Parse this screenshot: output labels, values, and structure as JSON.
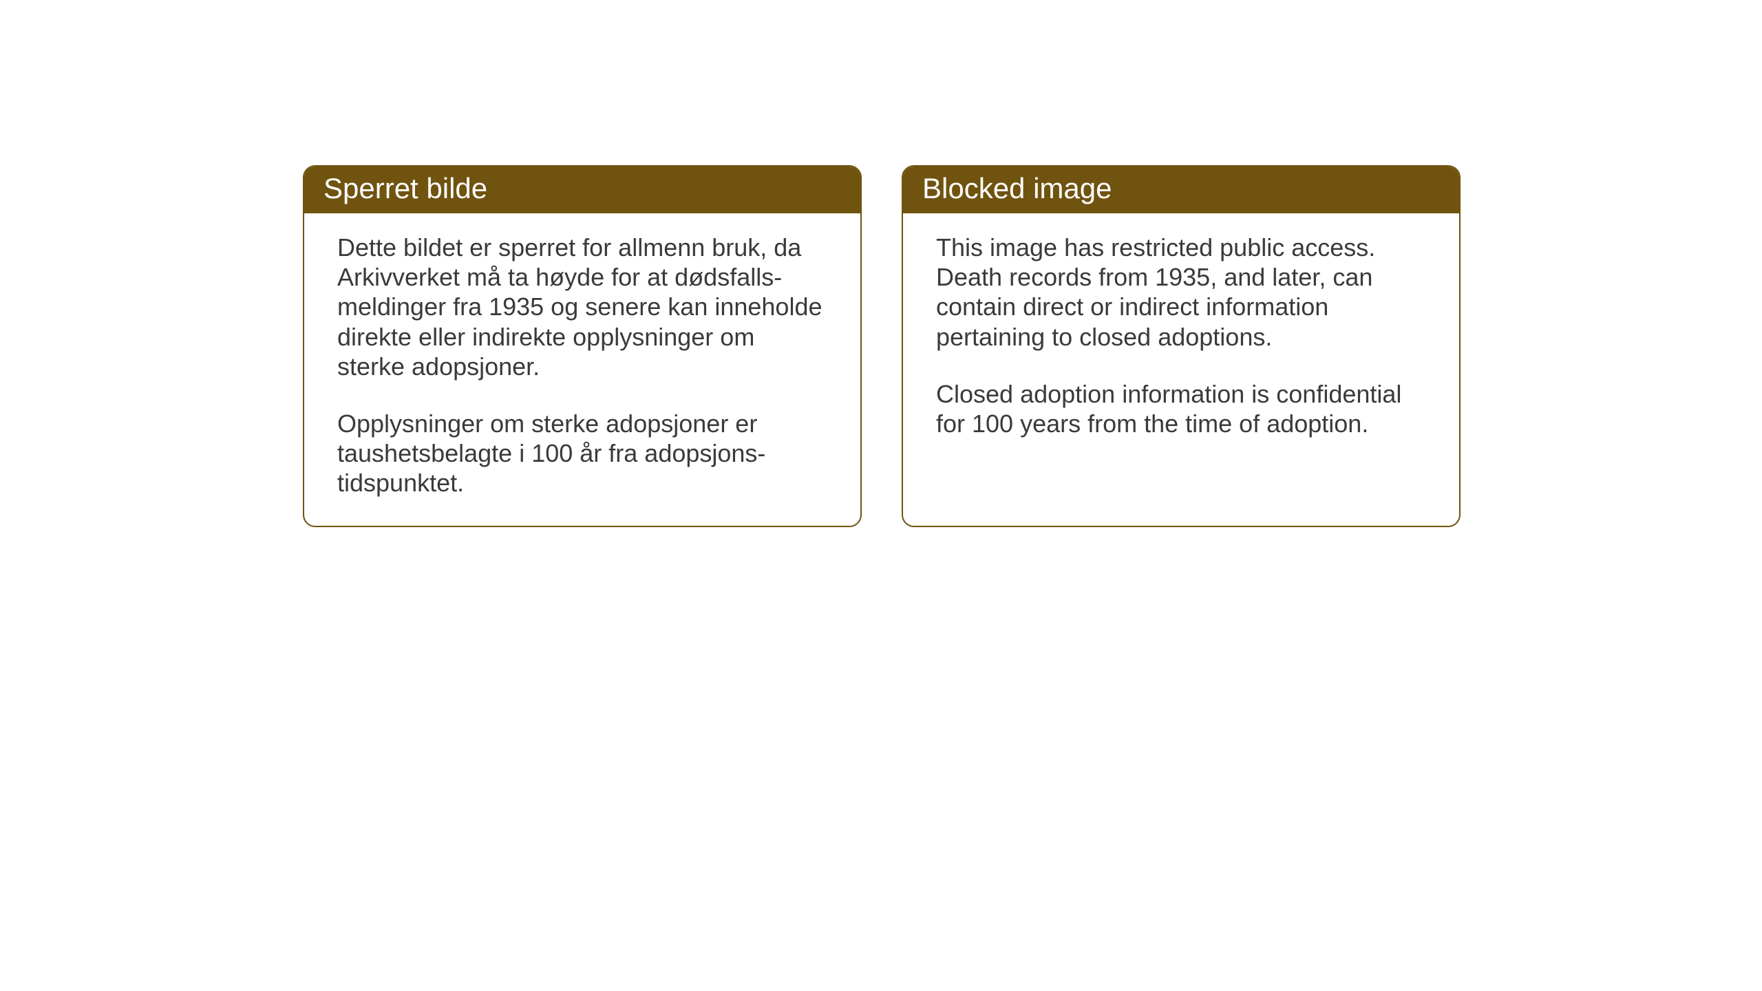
{
  "layout": {
    "background_color": "#ffffff",
    "card_border_color": "#6f530f",
    "card_border_radius": 18,
    "header_bg_color": "#6f530f",
    "header_text_color": "#ffffff",
    "body_text_color": "#3a3a3a",
    "header_fontsize": 42,
    "body_fontsize": 36
  },
  "cards": {
    "norwegian": {
      "title": "Sperret bilde",
      "paragraph1": "Dette bildet er sperret for allmenn bruk, da Arkivverket må ta høyde for at dødsfalls-meldinger fra 1935 og senere kan inneholde direkte eller indirekte opplysninger om sterke adopsjoner.",
      "paragraph2": "Opplysninger om sterke adopsjoner er taushetsbelagte i 100 år fra adopsjons-tidspunktet."
    },
    "english": {
      "title": "Blocked image",
      "paragraph1": "This image has restricted public access. Death records from 1935, and later, can contain direct or indirect information pertaining to closed adoptions.",
      "paragraph2": "Closed adoption information is confidential for 100 years from the time of adoption."
    }
  }
}
